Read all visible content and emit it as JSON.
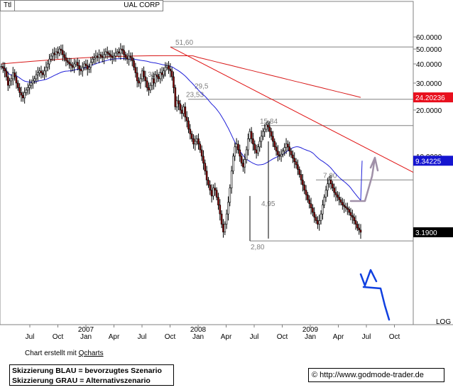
{
  "header": {
    "symbol_tag": "Ttl",
    "title": "UAL CORP"
  },
  "chart_data": {
    "type": "candlestick",
    "title": "UAL CORP",
    "scale": "log",
    "scale_label": "LOG",
    "y_ticks": [
      {
        "value": 60,
        "label": "60.0000"
      },
      {
        "value": 50,
        "label": "50.0000"
      },
      {
        "value": 40,
        "label": "40.0000"
      },
      {
        "value": 30,
        "label": "30.0000"
      },
      {
        "value": 20,
        "label": "20.0000"
      },
      {
        "value": 10,
        "label": "10.0000"
      }
    ],
    "x_months": [
      "Jul",
      "Oct",
      "Jan",
      "Apr",
      "Jul",
      "Oct",
      "Jan",
      "Apr",
      "Jul",
      "Oct",
      "Jan",
      "Apr",
      "Jul",
      "Oct"
    ],
    "x_years": [
      {
        "label": "2007",
        "month_index": 2
      },
      {
        "label": "2008",
        "month_index": 6
      },
      {
        "label": "2009",
        "month_index": 10
      }
    ],
    "price_labels": [
      {
        "value": 24.20236,
        "label": "24.20236",
        "color": "#e8101e"
      },
      {
        "value": 9.34225,
        "label": "9.34225",
        "color": "#1515d0"
      },
      {
        "value": 3.19,
        "label": "3.1900",
        "color": "#000000"
      }
    ],
    "levels": [
      {
        "value": 51.6,
        "label": "51,60"
      },
      {
        "value": 23.53,
        "label": "23,53"
      },
      {
        "value": 15.84,
        "label": "15,84"
      },
      {
        "value": 7.0,
        "label": "7,00"
      },
      {
        "value": 2.8,
        "label": "2,80"
      }
    ],
    "annotations": [
      {
        "value": 35.9,
        "label": "35,90"
      },
      {
        "value": 29.5,
        "label": "29,5"
      },
      {
        "value": 4.95,
        "label": "4,95"
      }
    ],
    "closes": [
      38.5,
      37.5,
      36,
      33,
      29,
      31,
      32,
      35,
      33,
      30,
      28,
      26,
      25,
      24,
      26,
      27,
      28,
      29,
      30,
      31,
      32,
      34,
      35,
      36,
      35,
      34,
      36,
      38,
      40,
      43,
      45,
      47,
      46,
      48,
      47,
      50,
      49,
      46,
      44,
      42,
      41,
      40,
      39,
      38,
      40,
      41,
      39,
      37,
      36,
      38,
      40,
      39,
      37,
      38,
      41,
      43,
      44,
      45,
      44,
      46,
      45,
      44,
      46,
      48,
      47,
      46,
      45,
      44,
      45,
      47,
      48,
      47,
      50,
      49,
      46,
      44,
      43,
      45,
      44,
      42,
      38,
      35,
      31,
      30,
      32,
      36,
      33,
      31,
      28,
      27,
      29,
      32,
      30,
      34,
      33,
      32,
      35,
      34,
      36,
      38,
      39,
      37,
      36,
      33,
      28,
      21,
      23,
      22,
      20,
      19,
      21,
      18,
      17,
      15,
      14,
      13,
      12,
      12.5,
      13,
      12,
      11,
      10,
      9,
      8,
      7,
      6.5,
      6,
      5.5,
      6.2,
      6,
      5.4,
      4.8,
      4.2,
      3.6,
      3.2,
      3.6,
      4.2,
      5,
      6.2,
      8,
      10,
      11.5,
      12,
      11,
      10,
      9,
      8.5,
      9.5,
      11,
      13,
      14.5,
      13,
      12,
      11,
      10.5,
      11.5,
      12.5,
      13.5,
      14.5,
      15,
      16,
      15.5,
      14.5,
      13.5,
      12.5,
      11.5,
      10.8,
      10.2,
      10,
      10.3,
      10.8,
      11.4,
      12,
      11.5,
      10.8,
      10.2,
      9.7,
      9.2,
      8.8,
      8.2,
      7.6,
      7,
      6.5,
      6,
      5.6,
      5.2,
      4.9,
      4.6,
      4.3,
      4,
      3.8,
      3.6,
      3.8,
      4.2,
      4.8,
      5.4,
      6,
      6.6,
      7,
      6.6,
      6.2,
      5.8,
      5.6,
      5.4,
      5.2,
      5,
      4.8,
      4.7,
      4.6,
      4.5,
      4.3,
      4.1,
      4,
      3.8,
      3.6,
      3.4,
      3.3,
      3.19
    ],
    "ma_blue": {
      "start": 34,
      "end": 9.34225
    },
    "ma_red": {
      "start": 40,
      "end": 24.20236
    },
    "scenario_blue_label": "Skizzierung BLAU = bevorzugtes Szenario",
    "scenario_grey_label": "Skizzierung GRAU = Alternativszenario"
  },
  "footer": {
    "note_prefix": "Chart erstellt mit ",
    "note_link": "Qcharts",
    "copyright": "© http://www.godmode-trader.de"
  }
}
